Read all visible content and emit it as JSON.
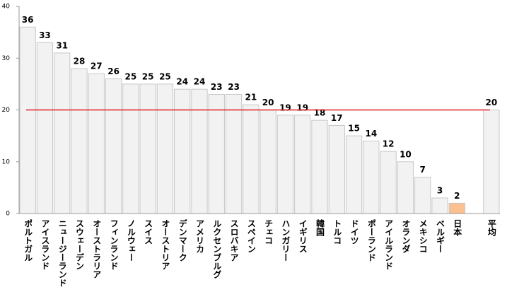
{
  "chart_data": {
    "type": "bar",
    "categories": [
      "ポルトガル",
      "アイスランド",
      "ニュージーランド",
      "スウェーデン",
      "オーストラリア",
      "フィンランド",
      "ノルウェー",
      "スイス",
      "オーストリア",
      "デンマーク",
      "アメリカ",
      "ルクセンブルグ",
      "スロバキア",
      "スペイン",
      "チェコ",
      "ハンガリー",
      "イギリス",
      "韓国",
      "トルコ",
      "ドイツ",
      "ポーランド",
      "アイルランド",
      "オランダ",
      "メキシコ",
      "ベルギー",
      "日本",
      null,
      "平均"
    ],
    "values": [
      36,
      33,
      31,
      28,
      27,
      26,
      25,
      25,
      25,
      24,
      24,
      23,
      23,
      21,
      20,
      19,
      19,
      18,
      17,
      15,
      14,
      12,
      10,
      7,
      3,
      2,
      null,
      20
    ],
    "colors": [
      "#f2f2f2",
      "#f2f2f2",
      "#f2f2f2",
      "#f2f2f2",
      "#f2f2f2",
      "#f2f2f2",
      "#f2f2f2",
      "#f2f2f2",
      "#f2f2f2",
      "#f2f2f2",
      "#f2f2f2",
      "#f2f2f2",
      "#f2f2f2",
      "#f2f2f2",
      "#f2f2f2",
      "#f2f2f2",
      "#f2f2f2",
      "#f2f2f2",
      "#f2f2f2",
      "#f2f2f2",
      "#f2f2f2",
      "#f2f2f2",
      "#f2f2f2",
      "#f2f2f2",
      "#f2f2f2",
      "#fac090",
      "#f2f2f2",
      "#f2f2f2"
    ],
    "average_line_color": "#e02020",
    "ylim": [
      0,
      40
    ],
    "yticks": [
      0,
      10,
      20,
      30,
      40
    ],
    "grid": false
  }
}
